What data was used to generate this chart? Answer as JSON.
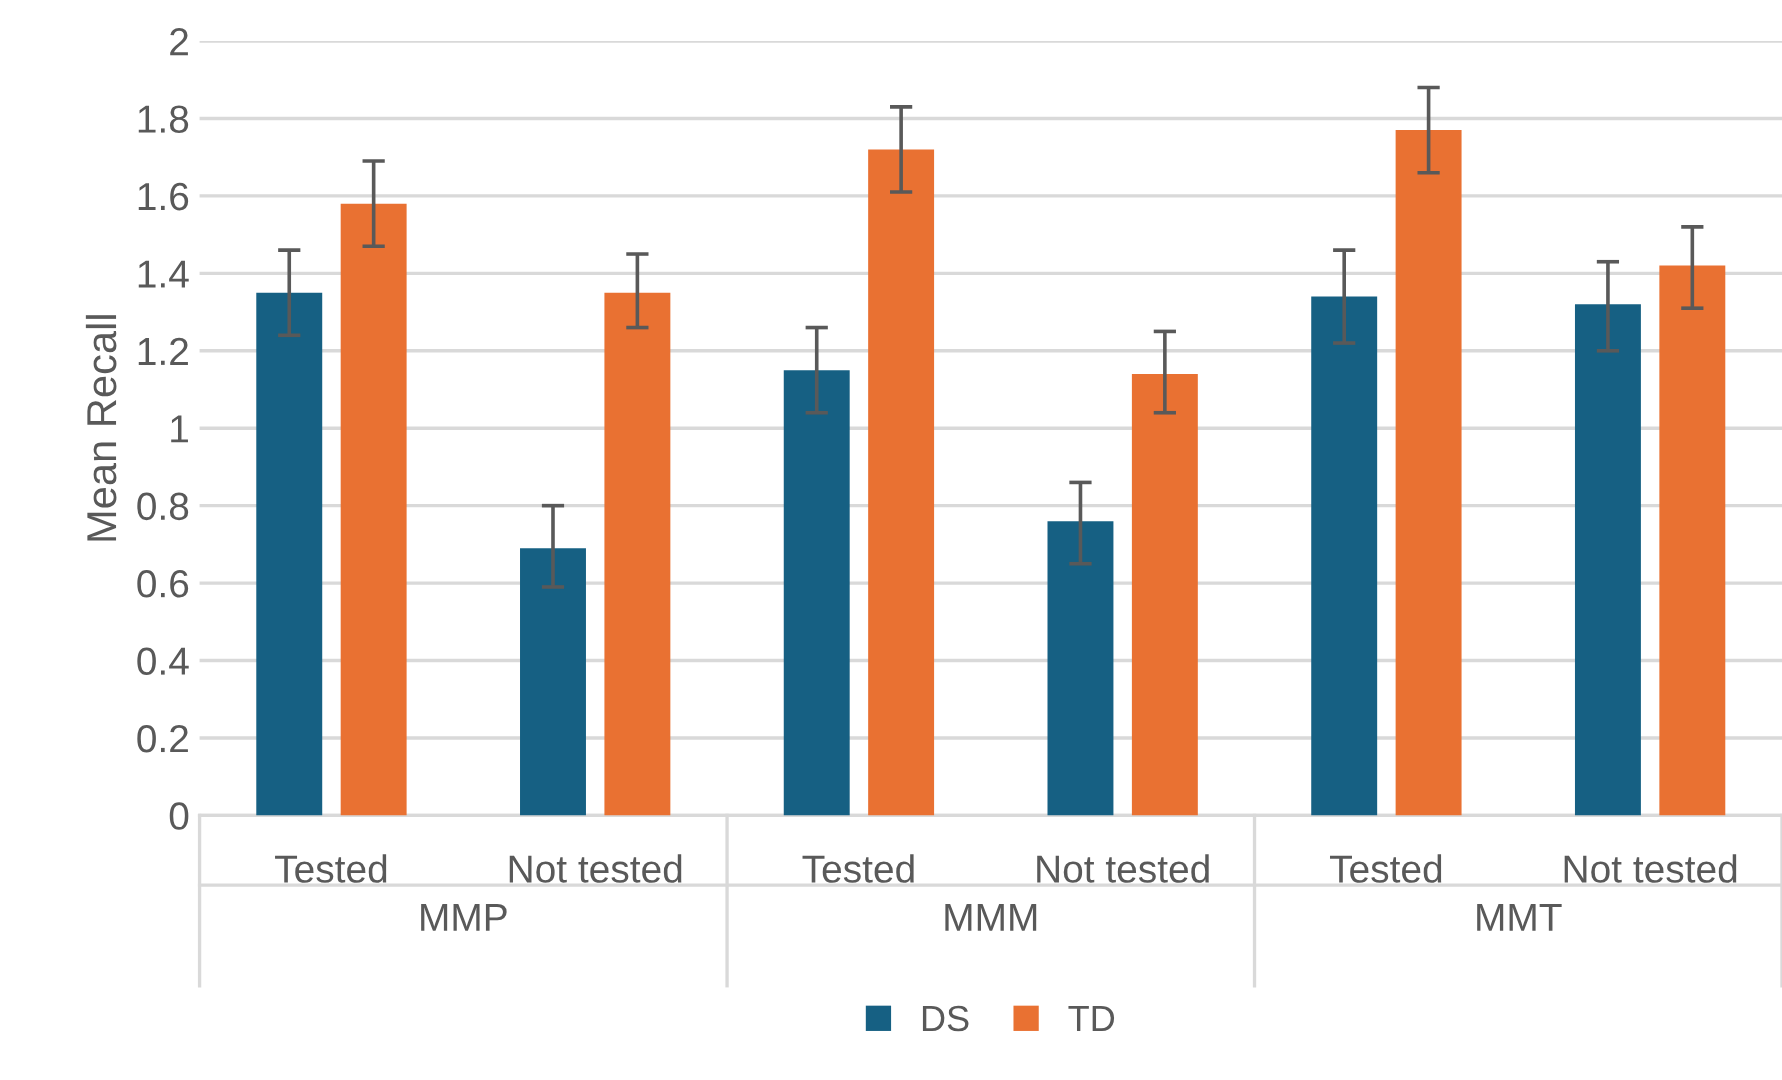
{
  "chart_data": {
    "type": "bar",
    "ylabel": "Mean Recall",
    "categories": [
      "Tested",
      "Not tested",
      "Tested",
      "Not tested",
      "Tested",
      "Not tested"
    ],
    "annotations": [
      "MMP",
      "MMM",
      "MMT"
    ],
    "series": [
      {
        "name": "DS",
        "color": "#166083",
        "values": [
          1.35,
          0.69,
          1.15,
          0.76,
          1.34,
          1.32
        ],
        "errors": [
          [
            1.24,
            1.46
          ],
          [
            0.59,
            0.8
          ],
          [
            1.04,
            1.26
          ],
          [
            0.65,
            0.86
          ],
          [
            1.22,
            1.46
          ],
          [
            1.2,
            1.43
          ]
        ]
      },
      {
        "name": "TD",
        "color": "#e97132",
        "values": [
          1.58,
          1.35,
          1.72,
          1.14,
          1.77,
          1.42
        ],
        "errors": [
          [
            1.47,
            1.69
          ],
          [
            1.26,
            1.45
          ],
          [
            1.61,
            1.83
          ],
          [
            1.04,
            1.25
          ],
          [
            1.66,
            1.88
          ],
          [
            1.31,
            1.52
          ]
        ]
      }
    ],
    "ylim": [
      0,
      2
    ],
    "yticks": [
      0,
      0.2,
      0.4,
      0.6,
      0.8,
      1,
      1.2,
      1.4,
      1.6,
      1.8,
      2
    ],
    "grid": "y",
    "legend": "bottom"
  }
}
